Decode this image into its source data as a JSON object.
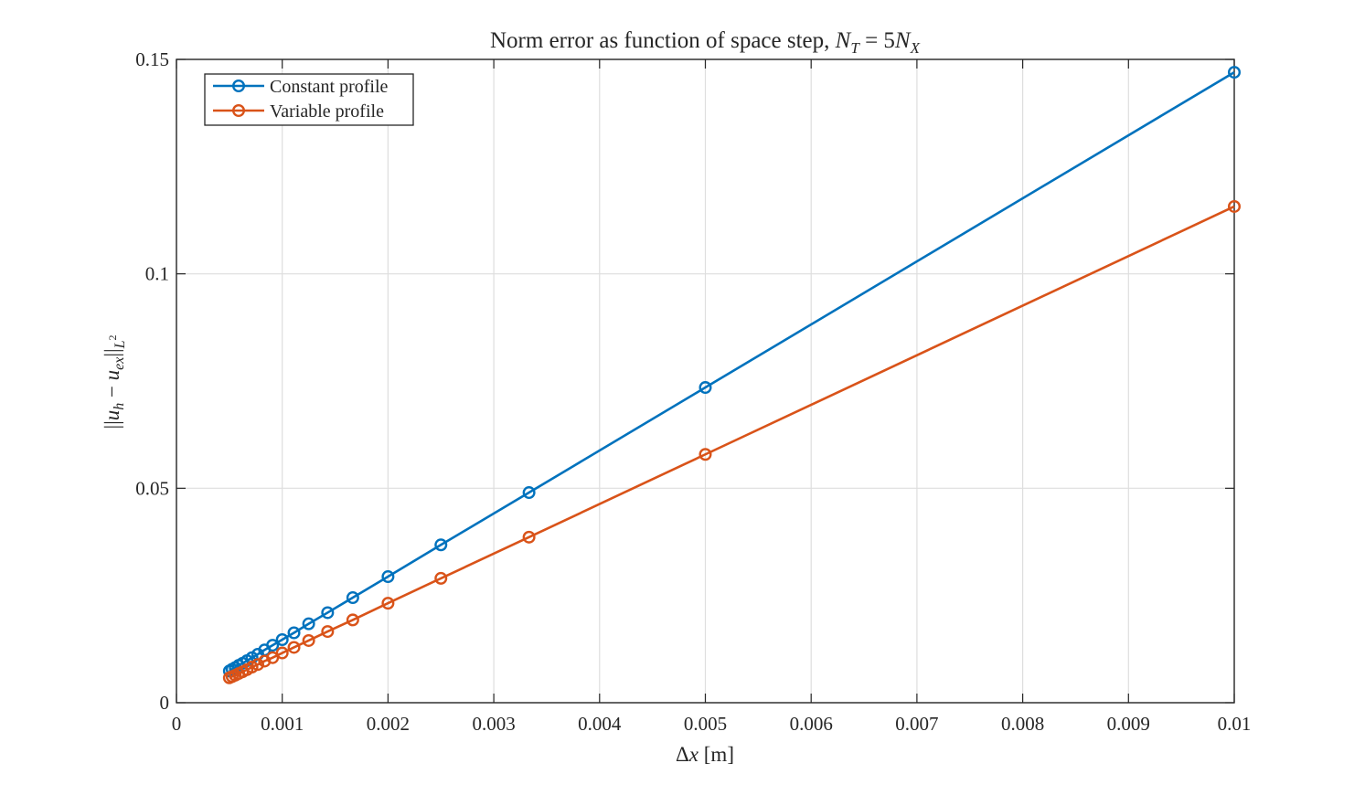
{
  "chart_data": {
    "type": "line",
    "title": "Norm error as function of space step, N_T = 5N_X",
    "title_math": {
      "prefix": "Norm error as function of space step, ",
      "lhs": "N",
      "lhs_sub": "T",
      "eq": " = 5",
      "rhs": "N",
      "rhs_sub": "X"
    },
    "xlabel": "Δx [m]",
    "xlabel_parts": {
      "symbol": "Δ",
      "var": "x",
      "unit": " [m]"
    },
    "ylabel": "||u_h − u_ex||_{L^2}",
    "ylabel_parts": {
      "open": "||",
      "u1": "u",
      "sub1": "h",
      "minus": " − ",
      "u2": "u",
      "sub2": "ex",
      "close": "||",
      "sub3": "L",
      "sup3": "2"
    },
    "xlim": [
      0,
      0.01
    ],
    "ylim": [
      0,
      0.15
    ],
    "xticks": [
      0,
      0.001,
      0.002,
      0.003,
      0.004,
      0.005,
      0.006,
      0.007,
      0.008,
      0.009,
      0.01
    ],
    "xtick_labels": [
      "0",
      "0.001",
      "0.002",
      "0.003",
      "0.004",
      "0.005",
      "0.006",
      "0.007",
      "0.008",
      "0.009",
      "0.01"
    ],
    "yticks": [
      0,
      0.05,
      0.1,
      0.15
    ],
    "ytick_labels": [
      "0",
      "0.05",
      "0.1",
      "0.15"
    ],
    "grid": true,
    "legend_position": "top-left",
    "x": [
      0.01,
      0.005,
      0.003333,
      0.0025,
      0.002,
      0.001667,
      0.001429,
      0.00125,
      0.001111,
      0.001,
      0.000909,
      0.000833,
      0.000769,
      0.000714,
      0.000667,
      0.000625,
      0.000588,
      0.000556,
      0.000526,
      0.0005
    ],
    "series": [
      {
        "name": "Constant profile",
        "color": "#0072BD",
        "values": [
          0.147,
          0.0735,
          0.049,
          0.0368,
          0.0294,
          0.0245,
          0.021,
          0.0184,
          0.0163,
          0.0147,
          0.0134,
          0.0123,
          0.0113,
          0.0105,
          0.0098,
          0.0092,
          0.0087,
          0.0082,
          0.0078,
          0.0074
        ]
      },
      {
        "name": "Variable profile",
        "color": "#D95319",
        "values": [
          0.1157,
          0.0579,
          0.0386,
          0.029,
          0.0232,
          0.0193,
          0.0166,
          0.0145,
          0.0129,
          0.0116,
          0.0105,
          0.0097,
          0.0089,
          0.0083,
          0.0077,
          0.0072,
          0.0068,
          0.0064,
          0.0061,
          0.0058
        ]
      }
    ]
  }
}
